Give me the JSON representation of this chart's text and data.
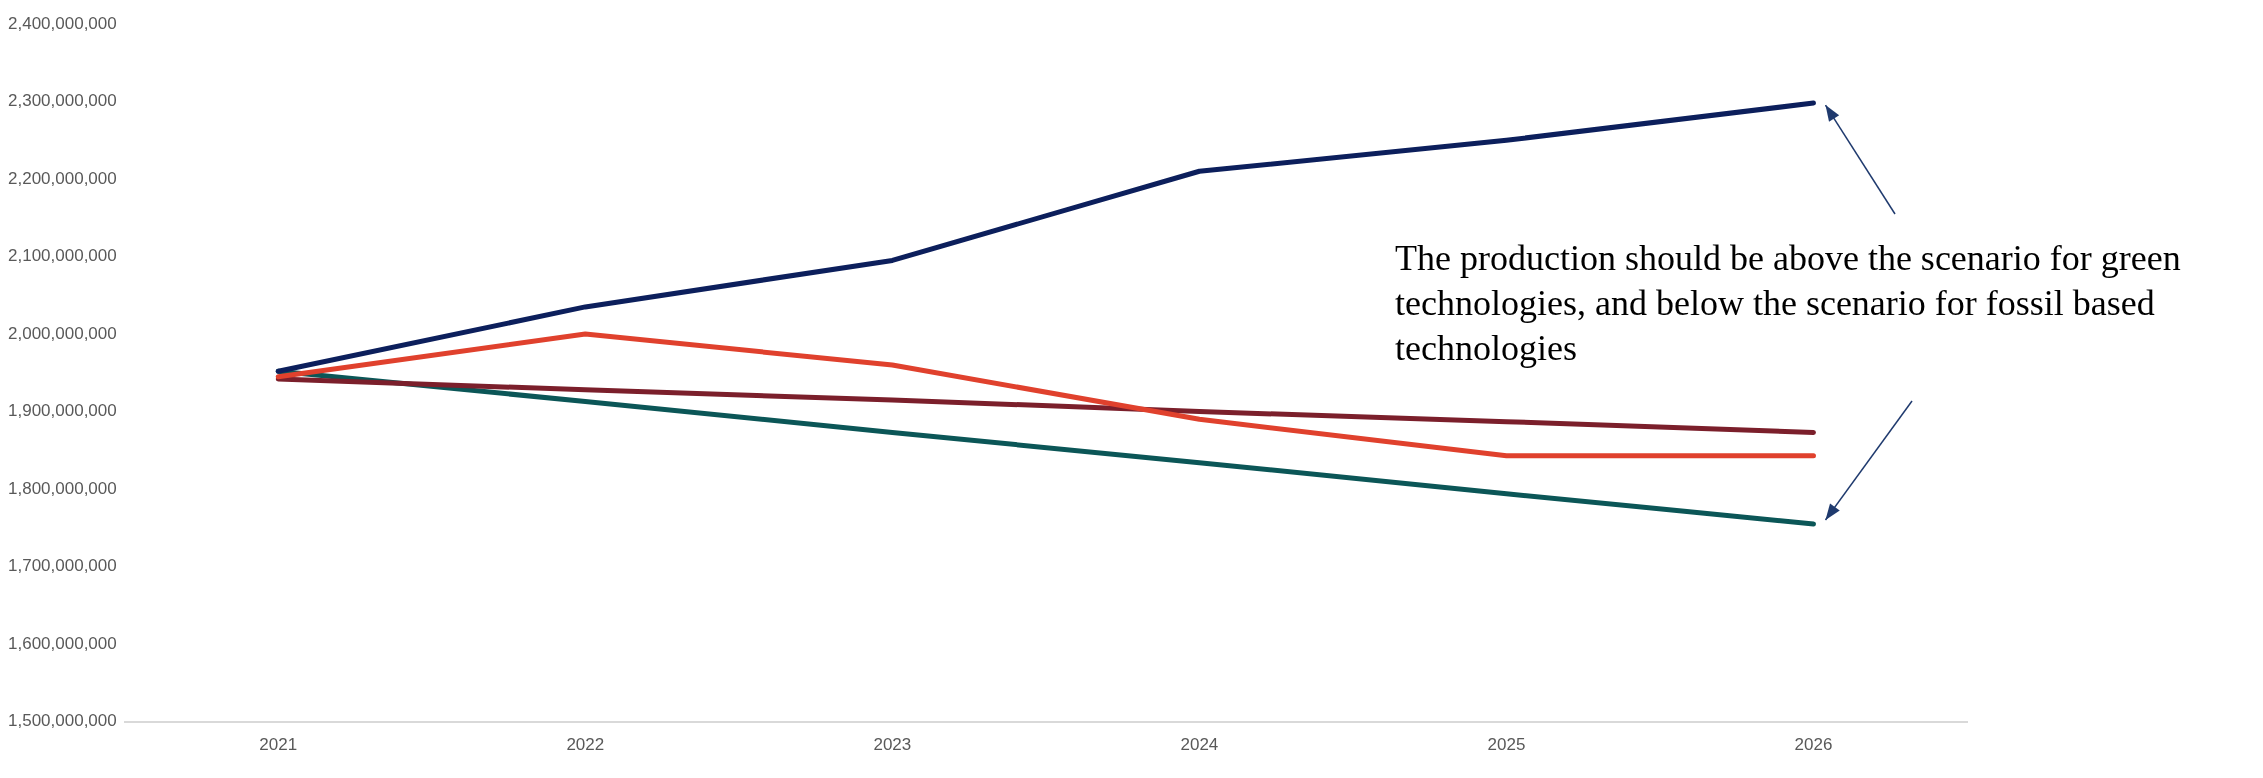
{
  "chart_data": {
    "type": "line",
    "categories": [
      "2021",
      "2022",
      "2023",
      "2024",
      "2025",
      "2026"
    ],
    "series": [
      {
        "color": "#0c1f5c",
        "values": [
          1952000000,
          2035000000,
          2095000000,
          2210000000,
          2250000000,
          2298000000
        ]
      },
      {
        "color": "#e0412d",
        "values": [
          1945000000,
          2000000000,
          1960000000,
          1890000000,
          1843000000,
          1843000000
        ]
      },
      {
        "color": "#7b1f2b",
        "values": [
          1942000000,
          1928000000,
          1915000000,
          1900000000,
          1887000000,
          1873000000
        ]
      },
      {
        "color": "#0b5657",
        "values": [
          1952000000,
          1913000000,
          1873000000,
          1834000000,
          1794000000,
          1755000000
        ]
      }
    ],
    "ylim": [
      1500000000,
      2400000000
    ],
    "yticks": [
      {
        "value": 1500000000,
        "label": "1,500,000,000"
      },
      {
        "value": 1600000000,
        "label": "1,600,000,000"
      },
      {
        "value": 1700000000,
        "label": "1,700,000,000"
      },
      {
        "value": 1800000000,
        "label": "1,800,000,000"
      },
      {
        "value": 1900000000,
        "label": "1,900,000,000"
      },
      {
        "value": 2000000000,
        "label": "2,000,000,000"
      },
      {
        "value": 2100000000,
        "label": "2,100,000,000"
      },
      {
        "value": 2200000000,
        "label": "2,200,000,000"
      },
      {
        "value": 2300000000,
        "label": "2,300,000,000"
      },
      {
        "value": 2400000000,
        "label": "2,400,000,000"
      }
    ],
    "grid": false,
    "legend": false,
    "marker": "none",
    "line_style": "solid",
    "annotations": [
      "The production should be above the scenario for green technologies, and below the scenario for fossil based technologies"
    ]
  }
}
